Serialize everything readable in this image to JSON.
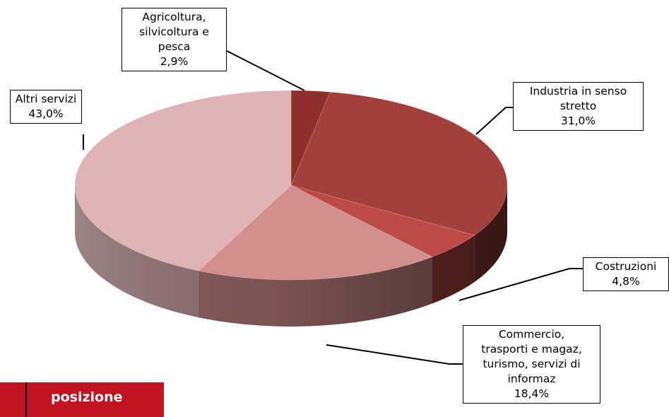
{
  "chart_data": {
    "type": "pie",
    "style": "3d",
    "slices": [
      {
        "label": "Agricoltura,\nsilvicoltura e\npesca",
        "value_text": "2,9%",
        "value": 2.9,
        "color": "#8f2f2c"
      },
      {
        "label": "Industria in senso\nstretto",
        "value_text": "31,0%",
        "value": 31.0,
        "color": "#a2403c"
      },
      {
        "label": "Costruzioni",
        "value_text": "4,8%",
        "value": 4.8,
        "color": "#bd4a47"
      },
      {
        "label": "Commercio,\ntrasporti e magaz,\nturismo, servizi di\ninformaz",
        "value_text": "18,4%",
        "value": 18.4,
        "color": "#d38e8d"
      },
      {
        "label": "Altri servizi",
        "value_text": "43,0%",
        "value": 43.0,
        "color": "#dfb3b3"
      }
    ]
  },
  "footer": {
    "label": "posizione",
    "color": "#c1121f"
  }
}
